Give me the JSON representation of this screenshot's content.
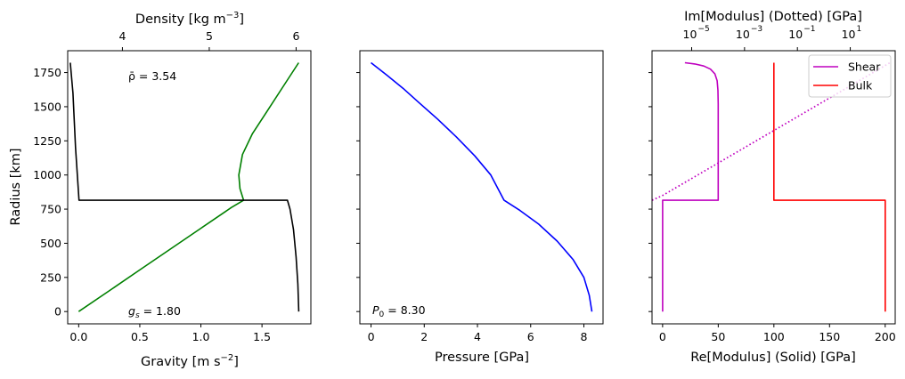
{
  "colors": {
    "gravity": "#008000",
    "density": "#000000",
    "pressure": "#0000ff",
    "shear": "#bf00bf",
    "bulk": "#ff0000"
  },
  "chart_data": [
    {
      "type": "line",
      "panel": "gravity-density",
      "ylabel": "Radius [km]",
      "ylim": [
        -90,
        1910
      ],
      "yticks": [
        0,
        250,
        500,
        750,
        1000,
        1250,
        1500,
        1750
      ],
      "ytick_labels": [
        "0",
        "250",
        "500",
        "750",
        "1000",
        "1250",
        "1500",
        "1750"
      ],
      "xlabel": "Gravity [m s$^{-2}$]",
      "xlim": [
        -0.09,
        1.9
      ],
      "xticks": [
        0.0,
        0.5,
        1.0,
        1.5
      ],
      "xtick_labels": [
        "0.0",
        "0.5",
        "1.0",
        "1.5"
      ],
      "top_xlabel": "Density [kg m$^{-3}$]",
      "top_xlim": [
        3.37,
        6.17
      ],
      "top_xticks": [
        4,
        5,
        6
      ],
      "top_xtick_labels": [
        "4",
        "5",
        "6"
      ],
      "annotations": {
        "mean_density": "ρ̄ = 3.54",
        "surface_gravity": "g_s = 1.80"
      },
      "series": [
        {
          "axis": "bottom",
          "color_key": "gravity",
          "x": [
            0.0,
            0.25,
            0.5,
            0.75,
            1.0,
            1.25,
            1.35,
            1.32,
            1.31,
            1.34,
            1.42,
            1.53,
            1.66,
            1.8
          ],
          "y": [
            0,
            152,
            305,
            457,
            610,
            762,
            815,
            900,
            1000,
            1150,
            1300,
            1450,
            1630,
            1822
          ]
        },
        {
          "axis": "top",
          "color_key": "density",
          "x": [
            6.03,
            6.02,
            6.0,
            5.97,
            5.93,
            5.9,
            3.5,
            3.46,
            3.43,
            3.4
          ],
          "y": [
            0,
            200,
            400,
            600,
            750,
            815,
            815,
            1200,
            1600,
            1822
          ]
        }
      ]
    },
    {
      "type": "line",
      "panel": "pressure",
      "xlabel": "Pressure [GPa]",
      "xlim": [
        -0.42,
        8.72
      ],
      "xticks": [
        0,
        2,
        4,
        6,
        8
      ],
      "xtick_labels": [
        "0",
        "2",
        "4",
        "6",
        "8"
      ],
      "ylim": [
        -90,
        1910
      ],
      "annotations": {
        "central_pressure": "P_0 = 8.30"
      },
      "series": [
        {
          "color_key": "pressure",
          "x": [
            0.0,
            0.6,
            1.2,
            1.8,
            2.5,
            3.2,
            3.9,
            4.5,
            5.0,
            5.6,
            6.3,
            7.0,
            7.6,
            8.0,
            8.2,
            8.3
          ],
          "y": [
            1822,
            1730,
            1635,
            1530,
            1410,
            1280,
            1140,
            1000,
            815,
            740,
            640,
            515,
            380,
            250,
            120,
            0
          ]
        }
      ]
    },
    {
      "type": "line",
      "panel": "modulus",
      "xlabel": "Re[Modulus] (Solid) [GPa]",
      "xlim": [
        -9.5,
        209
      ],
      "xticks": [
        0,
        50,
        100,
        150,
        200
      ],
      "xtick_labels": [
        "0",
        "50",
        "100",
        "150",
        "200"
      ],
      "top_xlabel": "Im[Modulus] (Dotted) [GPa]",
      "top_xlim_log10": [
        -6.5,
        2.7
      ],
      "top_xticks_log10": [
        -5,
        -3,
        -1,
        1
      ],
      "top_xtick_labels": [
        "10",
        "10",
        "10",
        "10"
      ],
      "top_xtick_exponents": [
        "−5",
        "−3",
        "−1",
        "1"
      ],
      "ylim": [
        -90,
        1910
      ],
      "legend": {
        "placement": "top-right",
        "entries": [
          "Shear",
          "Bulk"
        ]
      },
      "series": [
        {
          "name": "Shear",
          "color_key": "shear",
          "style": "solid",
          "x": [
            0,
            0,
            50,
            50,
            49.7,
            49,
            47,
            43,
            37,
            29,
            20
          ],
          "y": [
            0,
            815,
            815,
            1520,
            1620,
            1690,
            1740,
            1775,
            1798,
            1813,
            1822
          ]
        },
        {
          "name": "Bulk",
          "color_key": "bulk",
          "style": "solid",
          "x": [
            200,
            200,
            100,
            100
          ],
          "y": [
            0,
            815,
            815,
            1822
          ]
        },
        {
          "name": "Shear imaginary",
          "color_key": "shear",
          "style": "dotted",
          "axis": "top-log",
          "x_log10": [
            -6.5,
            -6.1,
            2.5
          ],
          "y": [
            815,
            850,
            1822
          ]
        }
      ]
    }
  ]
}
